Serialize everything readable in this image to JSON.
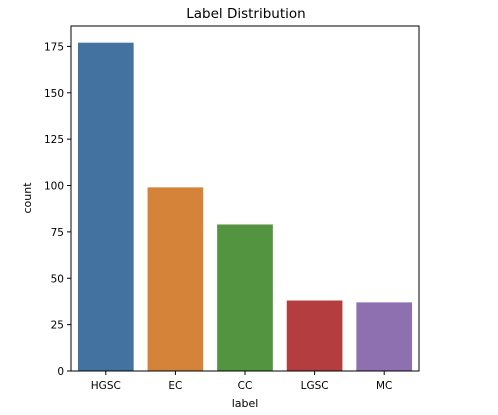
{
  "chart_data": {
    "type": "bar",
    "title": "Label Distribution",
    "xlabel": "label",
    "ylabel": "count",
    "categories": [
      "HGSC",
      "EC",
      "CC",
      "LGSC",
      "MC"
    ],
    "values": [
      177,
      99,
      79,
      38,
      37
    ],
    "colors": [
      "#4472a0",
      "#d6833a",
      "#52943f",
      "#b43d40",
      "#8e6fb0"
    ],
    "ylim": [
      0,
      186
    ],
    "yticks": [
      0,
      25,
      50,
      75,
      100,
      125,
      150,
      175
    ],
    "grid": false,
    "legend": "none"
  }
}
